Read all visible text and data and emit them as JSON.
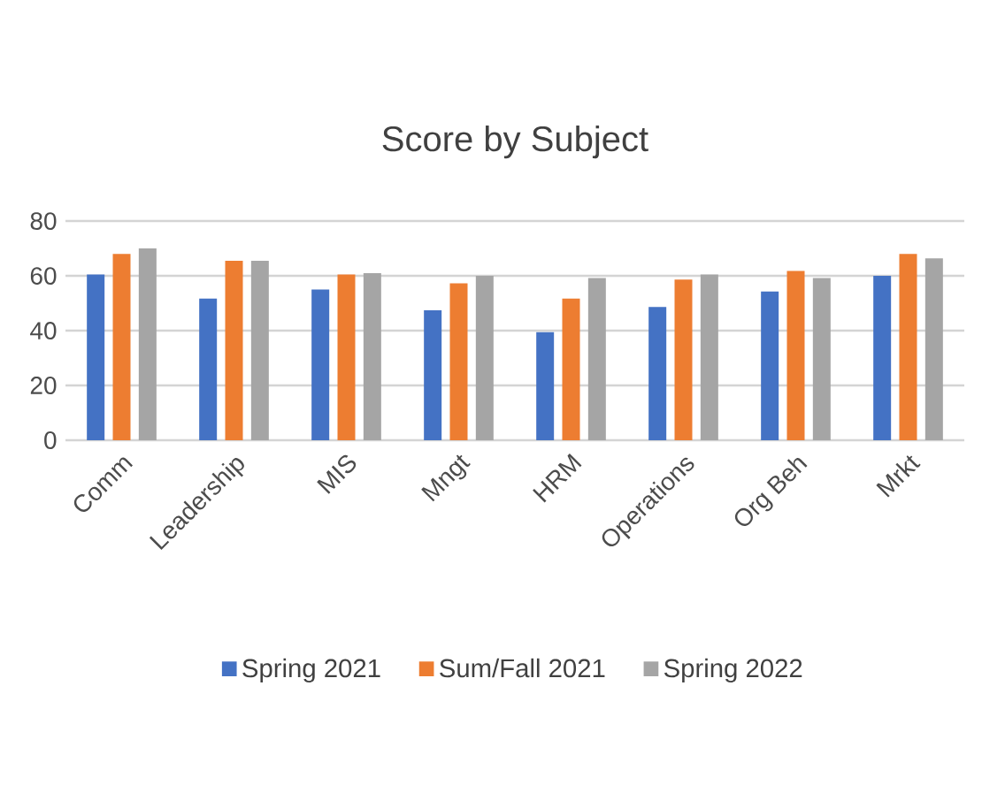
{
  "chart_data": {
    "type": "bar",
    "title": "Score by Subject",
    "categories": [
      "Comm",
      "Leadership",
      "MIS",
      "Mngt",
      "HRM",
      "Operations",
      "Org Beh",
      "Mrkt"
    ],
    "series": [
      {
        "name": "Spring 2021",
        "color": "#4472c4",
        "values": [
          60.5,
          51.7,
          55,
          47.4,
          39.4,
          48.6,
          54.3,
          60
        ]
      },
      {
        "name": "Sum/Fall 2021",
        "color": "#ed7d31",
        "values": [
          68,
          65.5,
          60.5,
          57.3,
          51.7,
          58.6,
          61.8,
          68
        ]
      },
      {
        "name": "Spring 2022",
        "color": "#a5a5a5",
        "values": [
          70,
          65.5,
          61,
          60,
          59.2,
          60.5,
          59.2,
          66.4
        ]
      }
    ],
    "ylim": [
      0,
      80
    ],
    "yticks": [
      0,
      20,
      40,
      60,
      80
    ],
    "grid": "y",
    "legend": "bottom"
  }
}
